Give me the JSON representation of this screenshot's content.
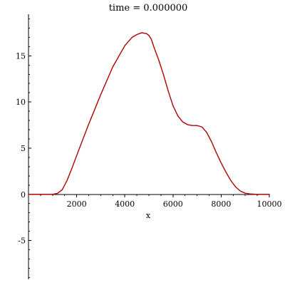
{
  "chart_data": {
    "type": "line",
    "title": "time = 0.000000",
    "xlabel": "x",
    "ylabel": "",
    "xlim": [
      0,
      10000
    ],
    "ylim": [
      -9.2,
      19.5
    ],
    "x_ticks": [
      2000,
      4000,
      6000,
      8000,
      10000
    ],
    "y_ticks": [
      -5,
      0,
      5,
      10,
      15
    ],
    "x_tick_labels": [
      "2000",
      "4000",
      "6000",
      "8000",
      "10000"
    ],
    "y_tick_labels": [
      "-5",
      "0",
      "5",
      "10",
      "15"
    ],
    "grid": false,
    "legend": "none",
    "color": "#b00000",
    "series": [
      {
        "x": [
          0,
          1000,
          1200,
          1400,
          1600,
          1800,
          2000,
          2500,
          3000,
          3500,
          4000,
          4300,
          4500,
          4700,
          4800,
          4900,
          5000,
          5100,
          5200,
          5400,
          5600,
          5800,
          6000,
          6200,
          6400,
          6600,
          6800,
          7000,
          7200,
          7400,
          7600,
          7800,
          8000,
          8200,
          8400,
          8600,
          8800,
          9000,
          9200,
          9400,
          9600,
          9800,
          10000
        ],
        "y": [
          0,
          0,
          0.1,
          0.5,
          1.5,
          2.8,
          4.2,
          7.6,
          10.8,
          13.8,
          16.1,
          17.0,
          17.3,
          17.5,
          17.45,
          17.4,
          17.2,
          16.8,
          16.0,
          14.6,
          13.0,
          11.2,
          9.6,
          8.5,
          7.85,
          7.55,
          7.45,
          7.45,
          7.3,
          6.7,
          5.7,
          4.5,
          3.4,
          2.4,
          1.5,
          0.8,
          0.35,
          0.12,
          0.04,
          0.01,
          0,
          0,
          0
        ]
      }
    ]
  }
}
